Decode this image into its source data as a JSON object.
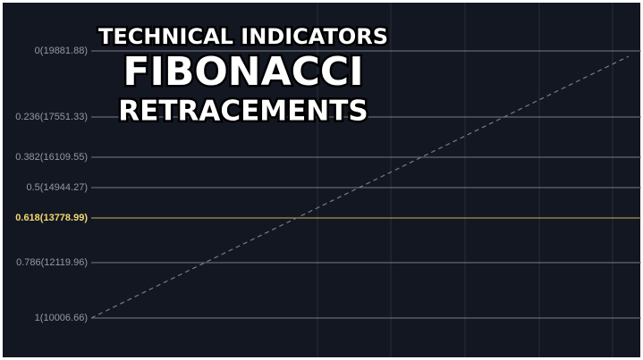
{
  "title": {
    "line1": "TECHNICAL INDICATORS",
    "line2": "FIBONACCI",
    "line3": "RETRACEMENTS"
  },
  "levels": [
    {
      "label": "0(19881.88)"
    },
    {
      "label": "0.236(17551.33)"
    },
    {
      "label": "0.382(16109.55)"
    },
    {
      "label": "0.5(14944.27)"
    },
    {
      "label": "0.618(13778.99)",
      "highlight": true
    },
    {
      "label": "0.786(12119.96)"
    },
    {
      "label": "1(10006.66)"
    }
  ]
}
